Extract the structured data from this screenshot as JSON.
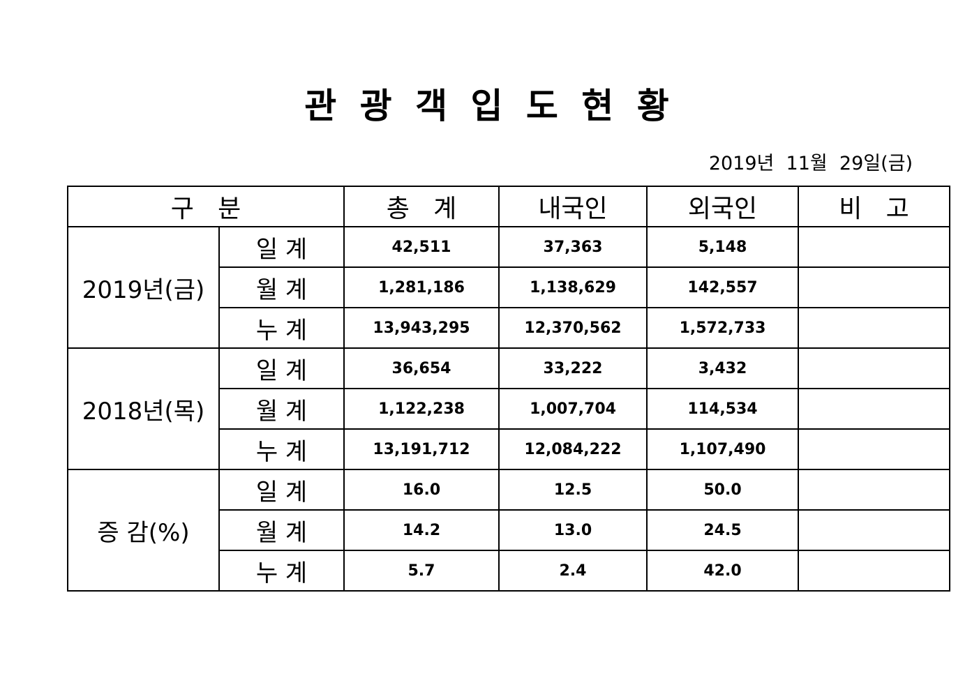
{
  "header": {
    "title": "관 광 객 입 도 현 황",
    "date": "2019년  11월  29일(금)"
  },
  "table": {
    "columns": [
      "구   분",
      "총   계",
      "내국인",
      "외국인",
      "비   고"
    ],
    "groups": [
      {
        "label": "2019년(금)",
        "rows": [
          {
            "label": "일 계",
            "values": [
              "42,511",
              "37,363",
              "5,148"
            ]
          },
          {
            "label": "월 계",
            "values": [
              "1,281,186",
              "1,138,629",
              "142,557"
            ]
          },
          {
            "label": "누 계",
            "values": [
              "13,943,295",
              "12,370,562",
              "1,572,733"
            ]
          }
        ]
      },
      {
        "label": "2018년(목)",
        "rows": [
          {
            "label": "일 계",
            "values": [
              "36,654",
              "33,222",
              "3,432"
            ]
          },
          {
            "label": "월 계",
            "values": [
              "1,122,238",
              "1,007,704",
              "114,534"
            ]
          },
          {
            "label": "누 계",
            "values": [
              "13,191,712",
              "12,084,222",
              "1,107,490"
            ]
          }
        ]
      },
      {
        "label": "증 감(%)",
        "rows": [
          {
            "label": "일 계",
            "values": [
              "16.0",
              "12.5",
              "50.0"
            ]
          },
          {
            "label": "월 계",
            "values": [
              "14.2",
              "13.0",
              "24.5"
            ]
          },
          {
            "label": "누 계",
            "values": [
              "5.7",
              "2.4",
              "42.0"
            ]
          }
        ]
      }
    ]
  }
}
